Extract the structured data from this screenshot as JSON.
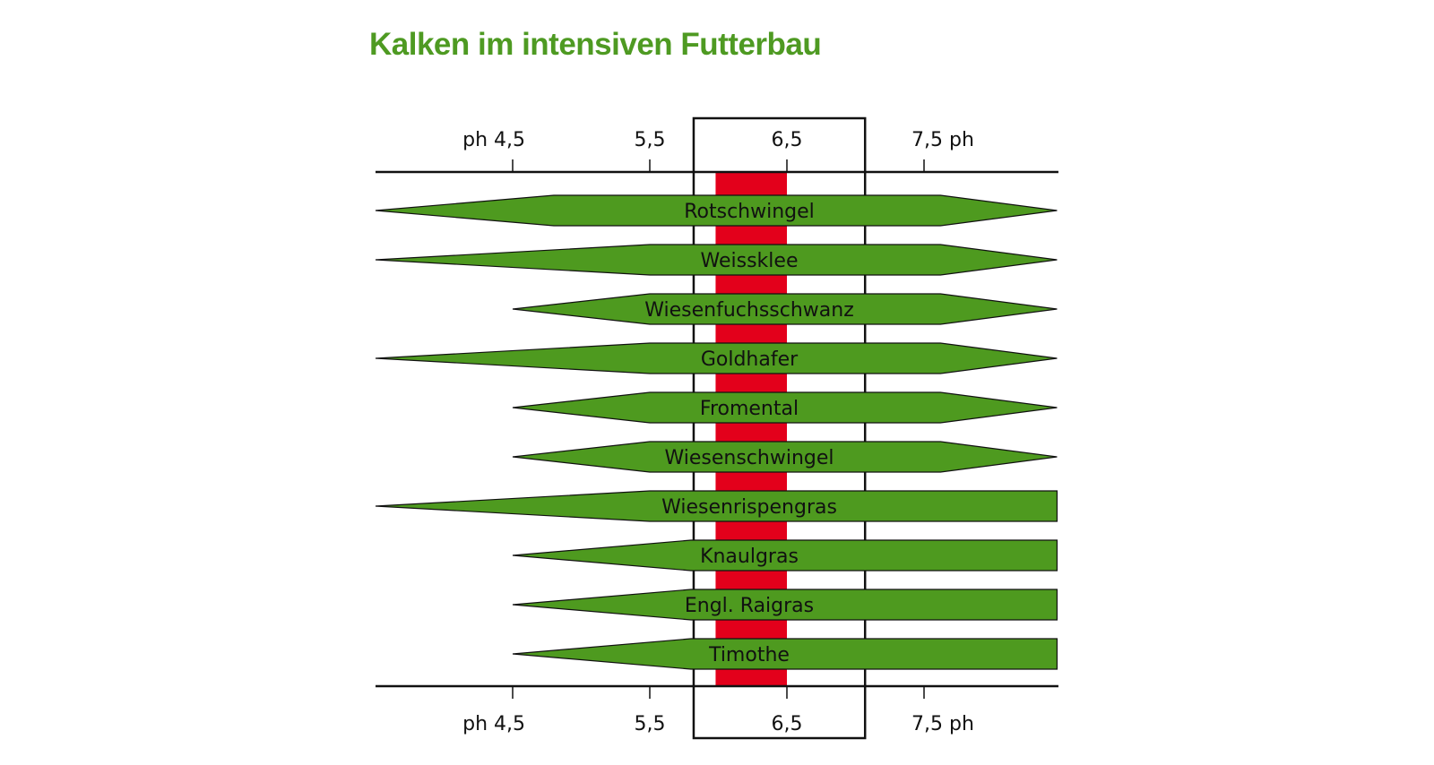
{
  "title": "Kalken im intensiven Futterbau",
  "colors": {
    "title": "#4e9a22",
    "bar": "#4e9a1f",
    "optimum": "#e3001b",
    "line": "#111111"
  },
  "chart_data": {
    "type": "bar",
    "title": "Kalken im intensiven Futterbau",
    "axis_unit": "ph",
    "ticks": [
      {
        "value": 4.5,
        "label": "4,5"
      },
      {
        "value": 5.5,
        "label": "5,5"
      },
      {
        "value": 6.5,
        "label": "6,5"
      },
      {
        "value": 7.5,
        "label": "7,5"
      }
    ],
    "tick_labels_top": [
      "ph 4,5",
      "5,5",
      "6,5",
      "7,5 ph"
    ],
    "tick_labels_bottom": [
      "ph 4,5",
      "5,5",
      "6,5",
      "7,5 ph"
    ],
    "xlim": [
      3.5,
      8.48
    ],
    "optimal_range": [
      5.98,
      6.5
    ],
    "highlight_box": [
      5.82,
      7.07
    ],
    "series": [
      {
        "name": "Rotschwingel",
        "min": 3.5,
        "full_start": 4.8,
        "full_end": 7.62,
        "max": 8.47,
        "right_open": false
      },
      {
        "name": "Weissklee",
        "min": 3.5,
        "full_start": 5.5,
        "full_end": 7.62,
        "max": 8.47,
        "right_open": false
      },
      {
        "name": "Wiesenfuchsschwanz",
        "min": 4.5,
        "full_start": 5.5,
        "full_end": 7.62,
        "max": 8.47,
        "right_open": false
      },
      {
        "name": "Goldhafer",
        "min": 3.5,
        "full_start": 5.5,
        "full_end": 7.62,
        "max": 8.47,
        "right_open": false
      },
      {
        "name": "Fromental",
        "min": 4.5,
        "full_start": 5.5,
        "full_end": 7.62,
        "max": 8.47,
        "right_open": false
      },
      {
        "name": "Wiesenschwingel",
        "min": 4.5,
        "full_start": 5.5,
        "full_end": 7.62,
        "max": 8.47,
        "right_open": false
      },
      {
        "name": "Wiesenrispengras",
        "min": 3.5,
        "full_start": 5.5,
        "full_end": 8.47,
        "max": 8.47,
        "right_open": true
      },
      {
        "name": "Knaulgras",
        "min": 4.5,
        "full_start": 5.8,
        "full_end": 8.47,
        "max": 8.47,
        "right_open": true
      },
      {
        "name": "Engl. Raigras",
        "min": 4.5,
        "full_start": 5.8,
        "full_end": 8.47,
        "max": 8.47,
        "right_open": true
      },
      {
        "name": "Timothe",
        "min": 4.5,
        "full_start": 5.8,
        "full_end": 8.47,
        "max": 8.47,
        "right_open": true
      }
    ]
  }
}
